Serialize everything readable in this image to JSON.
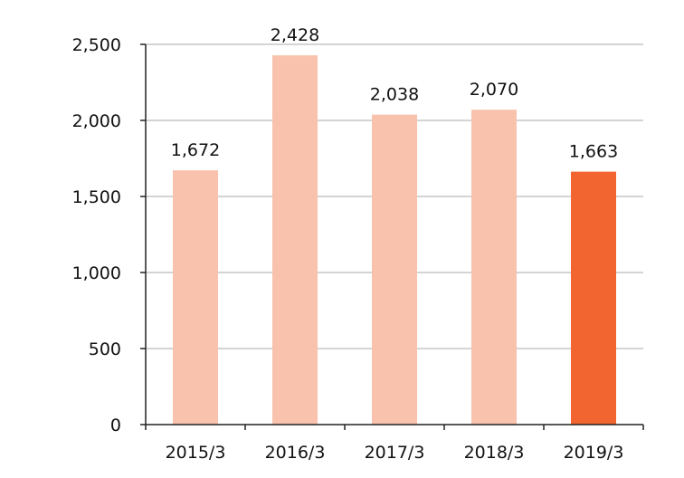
{
  "chart_data": {
    "type": "bar",
    "categories": [
      "2015/3",
      "2016/3",
      "2017/3",
      "2018/3",
      "2019/3"
    ],
    "values": [
      1672,
      2428,
      2038,
      2070,
      1663
    ],
    "value_labels": [
      "1,672",
      "2,428",
      "2,038",
      "2,070",
      "1,663"
    ],
    "ylim": [
      0,
      2500
    ],
    "yticks": [
      0,
      500,
      1000,
      1500,
      2000,
      2500
    ],
    "ytick_labels": [
      "0",
      "500",
      "1,000",
      "1,500",
      "2,000",
      "2,500"
    ],
    "grid": true,
    "legend": "none",
    "colors": {
      "default_bar": "#f9c2ad",
      "highlight_bar": "#f26430",
      "grid": "#bbbbbb",
      "axis": "#222222"
    },
    "highlight_index": 4
  }
}
